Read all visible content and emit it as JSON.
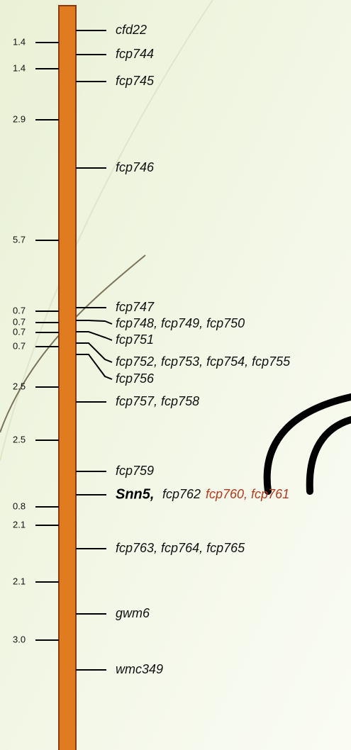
{
  "distances": [
    "1.4",
    "1.4",
    "2.9",
    "5.7",
    "0.7",
    "0.7",
    "0.7",
    "0.7",
    "2.5",
    "2.5",
    "0.8",
    "2.1",
    "2.1",
    "3.0"
  ],
  "markers": [
    "cfd22",
    "fcp744",
    "fcp745",
    "fcp746",
    "fcp747",
    "fcp748, fcp749, fcp750",
    "fcp751",
    "fcp752, fcp753, fcp754, fcp755",
    "fcp756",
    "fcp757, fcp758",
    "fcp759",
    "fcp762",
    "fcp763, fcp764, fcp765",
    "gwm6",
    "wmc349"
  ],
  "gene_label": "Snn5,",
  "highlighted_markers": "fcp760, fcp761"
}
